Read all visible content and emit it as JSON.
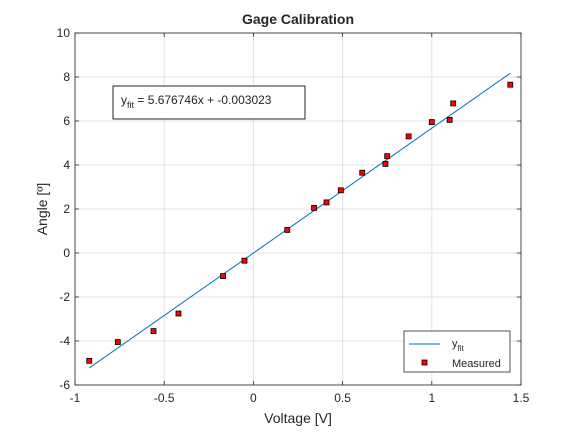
{
  "chart_data": {
    "type": "scatter",
    "title": "Gage Calibration",
    "xlabel": "Voltage [V]",
    "ylabel": "Angle [º]",
    "xlim": [
      -1,
      1.5
    ],
    "ylim": [
      -6,
      10
    ],
    "xticks": [
      "-1",
      "-0.5",
      "0",
      "0.5",
      "1",
      "1.5"
    ],
    "yticks": [
      "-6",
      "-4",
      "-2",
      "0",
      "2",
      "4",
      "6",
      "8",
      "10"
    ],
    "grid": true,
    "legend_position": "bottom-right",
    "series": [
      {
        "name": "y",
        "name_subscript": "fit",
        "kind": "line",
        "color": "#0072BD",
        "x": [
          -0.92,
          1.44
        ],
        "y": [
          -5.225,
          8.172
        ]
      },
      {
        "name": "Measured",
        "kind": "marker",
        "marker": "square",
        "edge_color": "#000000",
        "face_color": "#FF0000",
        "x": [
          -0.92,
          -0.76,
          -0.56,
          -0.42,
          -0.17,
          -0.05,
          0.19,
          0.34,
          0.41,
          0.49,
          0.61,
          0.74,
          0.75,
          0.87,
          1.0,
          1.1,
          1.12,
          1.44
        ],
        "y": [
          -4.9,
          -4.05,
          -3.55,
          -2.75,
          -1.05,
          -0.35,
          1.05,
          2.05,
          2.3,
          2.85,
          3.65,
          4.05,
          4.4,
          5.3,
          5.95,
          6.05,
          6.8,
          7.65
        ]
      }
    ],
    "annotation": {
      "prefix": "y",
      "subscript": "fit",
      "equation": " = 5.676746x + -0.003023"
    }
  }
}
